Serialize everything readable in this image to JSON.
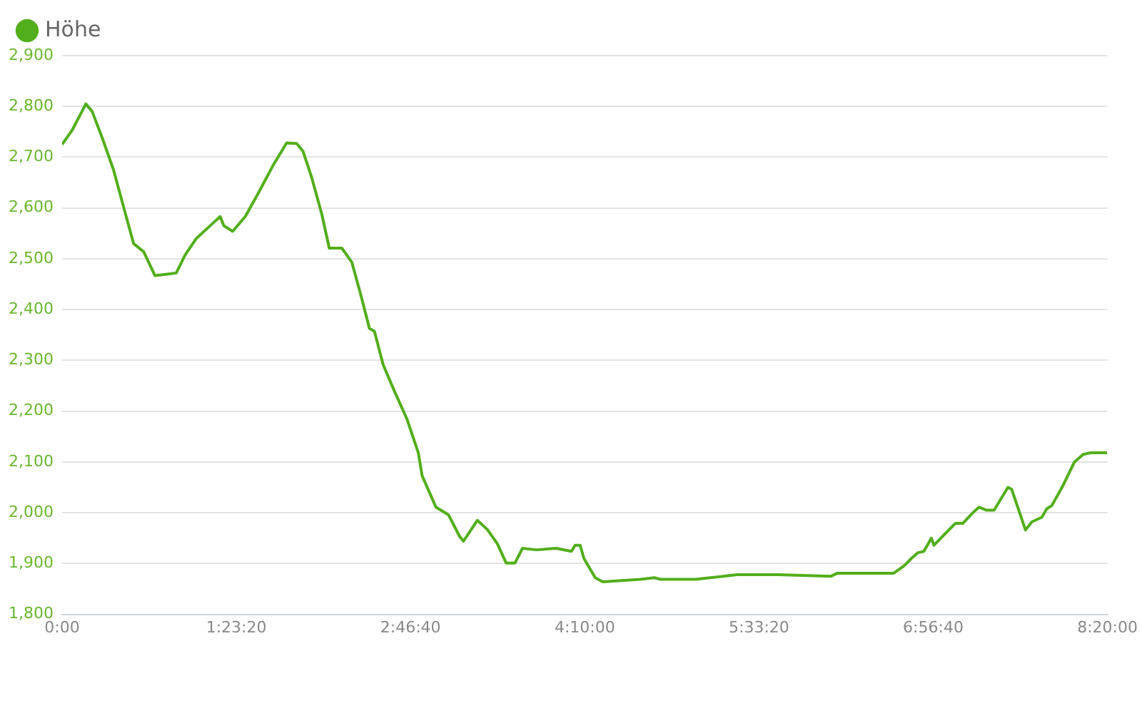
{
  "chart_data": {
    "type": "line",
    "legend": "top left",
    "grid": "y",
    "marker": "none",
    "line_style": "solid",
    "x": [
      0,
      0.08,
      0.19,
      0.24,
      0.32,
      0.41,
      0.52,
      0.57,
      0.65,
      0.74,
      0.85,
      0.91,
      0.98,
      1.07,
      1.18,
      1.26,
      1.29,
      1.36,
      1.46,
      1.57,
      1.68,
      1.79,
      1.87,
      1.92,
      1.99,
      2.07,
      2.13,
      2.23,
      2.31,
      2.38,
      2.45,
      2.49,
      2.56,
      2.65,
      2.75,
      2.84,
      2.87,
      2.98,
      3.08,
      3.17,
      3.2,
      3.31,
      3.39,
      3.47,
      3.54,
      3.61,
      3.67,
      3.78,
      3.94,
      4.06,
      4.09,
      4.13,
      4.16,
      4.25,
      4.31,
      4.61,
      4.72,
      4.77,
      5.05,
      5.38,
      5.71,
      6.13,
      6.18,
      6.63,
      6.71,
      6.77,
      6.82,
      6.87,
      6.93,
      6.95,
      7.12,
      7.18,
      7.26,
      7.31,
      7.37,
      7.43,
      7.54,
      7.57,
      7.68,
      7.73,
      7.81,
      7.85,
      7.89,
      7.98,
      8.07,
      8.14,
      8.2,
      8.33
    ],
    "series": [
      {
        "name": "Höhe",
        "color": "#52ae1a",
        "values": [
          2725,
          2753,
          2805,
          2790,
          2738,
          2675,
          2575,
          2530,
          2514,
          2467,
          2470,
          2472,
          2507,
          2540,
          2565,
          2583,
          2565,
          2554,
          2583,
          2632,
          2683,
          2728,
          2727,
          2712,
          2660,
          2588,
          2521,
          2521,
          2493,
          2430,
          2363,
          2357,
          2291,
          2239,
          2184,
          2118,
          2073,
          2011,
          1996,
          1953,
          1944,
          1985,
          1967,
          1939,
          1901,
          1901,
          1930,
          1927,
          1930,
          1924,
          1936,
          1936,
          1910,
          1872,
          1864,
          1869,
          1872,
          1869,
          1869,
          1878,
          1878,
          1875,
          1881,
          1881,
          1895,
          1910,
          1921,
          1924,
          1950,
          1936,
          1979,
          1979,
          2000,
          2011,
          2005,
          2005,
          2050,
          2046,
          1966,
          1982,
          1991,
          2008,
          2014,
          2054,
          2100,
          2115,
          2118,
          2118
        ]
      }
    ],
    "xlim": [
      0,
      8.3333
    ],
    "xticks": [
      {
        "value": 0,
        "label": "0:00"
      },
      {
        "value": 1.3889,
        "label": "1:23:20"
      },
      {
        "value": 2.7778,
        "label": "2:46:40"
      },
      {
        "value": 4.1667,
        "label": "4:10:00"
      },
      {
        "value": 5.5556,
        "label": "5:33:20"
      },
      {
        "value": 6.9444,
        "label": "6:56:40"
      },
      {
        "value": 8.3333,
        "label": "8:20:00"
      }
    ],
    "ylim": [
      1800,
      2900
    ],
    "yticks": [
      {
        "value": 1800,
        "label": "1,800"
      },
      {
        "value": 1900,
        "label": "1,900"
      },
      {
        "value": 2000,
        "label": "2,000"
      },
      {
        "value": 2100,
        "label": "2,100"
      },
      {
        "value": 2200,
        "label": "2,200"
      },
      {
        "value": 2300,
        "label": "2,300"
      },
      {
        "value": 2400,
        "label": "2,400"
      },
      {
        "value": 2500,
        "label": "2,500"
      },
      {
        "value": 2600,
        "label": "2,600"
      },
      {
        "value": 2700,
        "label": "2,700"
      },
      {
        "value": 2800,
        "label": "2,800"
      },
      {
        "value": 2900,
        "label": "2,900"
      }
    ]
  }
}
